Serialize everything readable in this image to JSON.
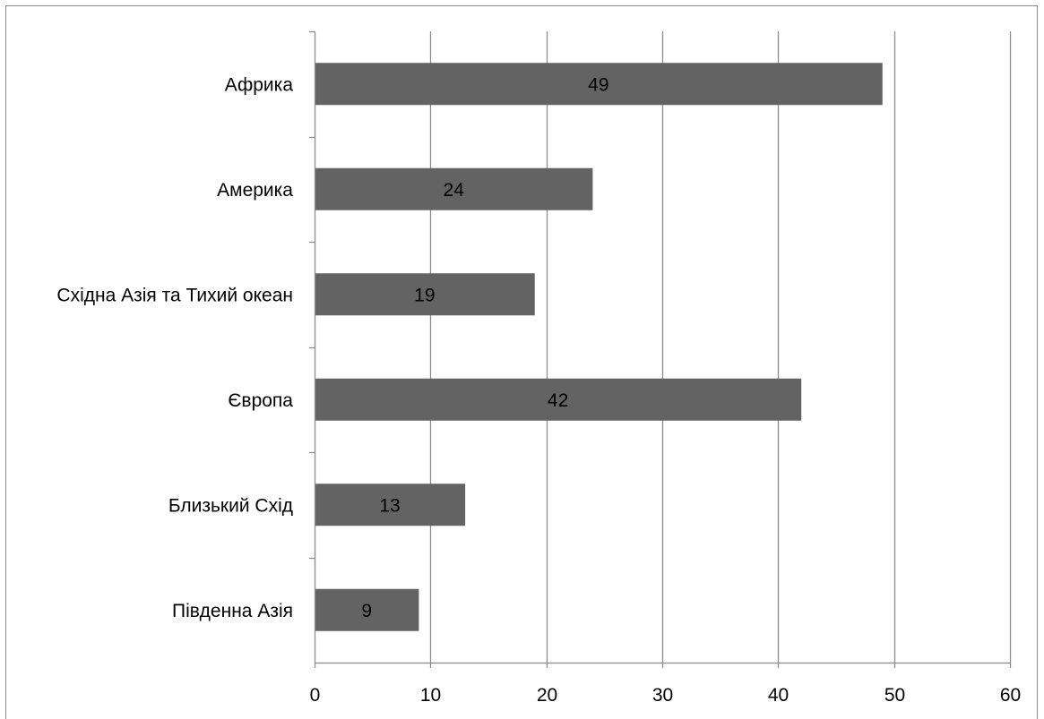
{
  "chart_data": {
    "type": "bar",
    "orientation": "horizontal",
    "categories": [
      "Африка",
      "Америка",
      "Східна Азія та Тихий океан",
      "Європа",
      "Близький Схід",
      "Південна Азія"
    ],
    "values": [
      49,
      24,
      19,
      42,
      13,
      9
    ],
    "data_labels": [
      "49",
      "24",
      "19",
      "42",
      "13",
      "9"
    ],
    "title": "",
    "xlabel": "",
    "ylabel": "",
    "xlim": [
      0,
      60
    ],
    "x_ticks": [
      0,
      10,
      20,
      30,
      40,
      50,
      60
    ],
    "grid": true,
    "legend": "none",
    "colors": {
      "bar": "#636363",
      "grid": "#8c8c8c",
      "axis": "#8c8c8c",
      "text": "#000000"
    }
  }
}
